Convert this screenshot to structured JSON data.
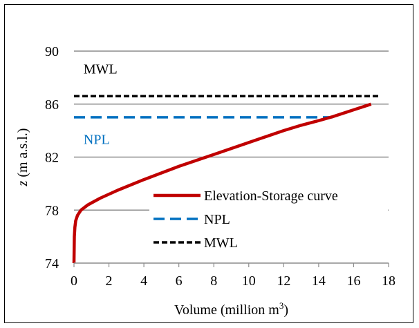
{
  "chart_data": {
    "type": "line",
    "xlabel": {
      "prefix": "Volume (million m",
      "superscript": "3",
      "suffix": ")"
    },
    "ylabel": {
      "italic": "z",
      "rest": " (m a.s.l.)"
    },
    "xlim": [
      0,
      18
    ],
    "ylim": [
      74,
      90
    ],
    "xticks": [
      0,
      2,
      4,
      6,
      8,
      10,
      12,
      14,
      16,
      18
    ],
    "yticks": [
      74,
      78,
      82,
      86,
      90
    ],
    "grid": "horizontal",
    "legend_placement": "bottom-right",
    "series": [
      {
        "name": "Elevation-Storage curve",
        "color": "#c00000",
        "dash": "solid",
        "x": [
          0,
          0.02,
          0.05,
          0.1,
          0.2,
          0.4,
          0.8,
          1.5,
          2.5,
          4,
          6,
          8,
          10,
          12,
          13,
          14,
          14.8,
          17
        ],
        "y": [
          74,
          76,
          76.7,
          77.2,
          77.6,
          78,
          78.4,
          78.9,
          79.5,
          80.3,
          81.3,
          82.2,
          83.1,
          84,
          84.4,
          84.75,
          85.05,
          86
        ]
      },
      {
        "name": "NPL",
        "color": "#0070c0",
        "dash": "dashed",
        "x": [
          0,
          14.8
        ],
        "y": [
          85,
          85
        ]
      },
      {
        "name": "MWL",
        "color": "#000000",
        "dash": "dashed",
        "x": [
          0,
          17.5
        ],
        "y": [
          86.6,
          86.6
        ]
      }
    ],
    "annotations": [
      {
        "text": "MWL",
        "color": "#000000",
        "x": 0.55,
        "y": 88.3
      },
      {
        "text": "NPL",
        "color": "#0070c0",
        "x": 0.55,
        "y": 83
      }
    ]
  }
}
